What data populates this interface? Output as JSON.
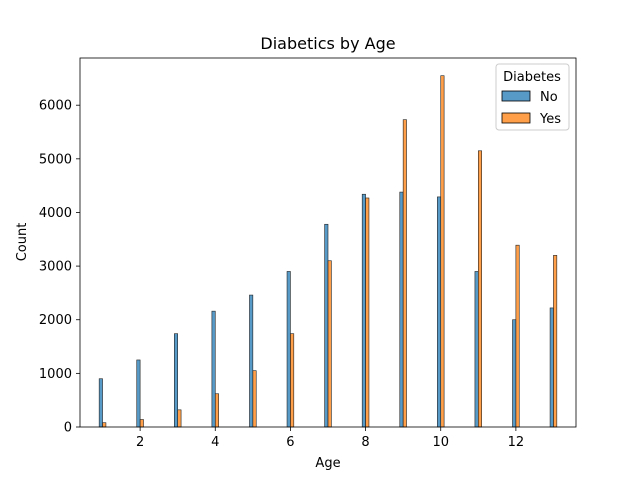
{
  "chart_data": {
    "type": "bar",
    "title": "Diabetics by Age",
    "xlabel": "Age",
    "ylabel": "Count",
    "xlim": [
      0.4,
      13.6
    ],
    "ylim": [
      0,
      6880
    ],
    "xticks": [
      2,
      4,
      6,
      8,
      10,
      12
    ],
    "yticks": [
      0,
      1000,
      2000,
      3000,
      4000,
      5000,
      6000
    ],
    "legend": {
      "title": "Diabetes",
      "position": "top-right"
    },
    "x": [
      1,
      2,
      3,
      4,
      5,
      6,
      7,
      8,
      9,
      10,
      11,
      12,
      13
    ],
    "series": [
      {
        "name": "No",
        "color": "#1f77b4",
        "values": [
          900,
          1250,
          1740,
          2160,
          2460,
          2900,
          3780,
          4340,
          4380,
          4290,
          2900,
          2000,
          2220
        ]
      },
      {
        "name": "Yes",
        "color": "#ff7f0e",
        "values": [
          80,
          140,
          320,
          620,
          1050,
          1740,
          3100,
          4270,
          5730,
          6550,
          5150,
          3390,
          3200
        ]
      }
    ]
  }
}
